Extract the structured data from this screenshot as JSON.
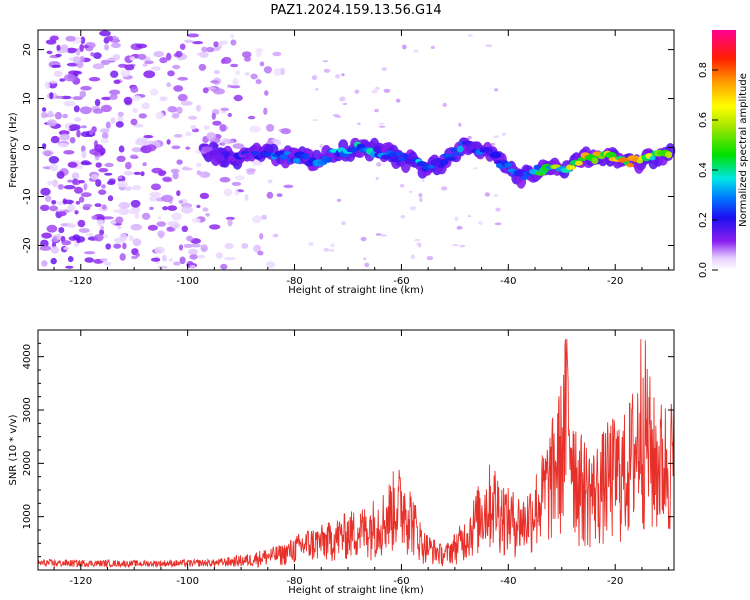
{
  "title": "PAZ1.2024.159.13.56.G14",
  "chart_data": [
    {
      "type": "heatmap",
      "xlabel": "Height of straight line (km)",
      "ylabel": "Frequency (Hz)",
      "xlim": [
        -128,
        -9
      ],
      "ylim": [
        -25,
        24
      ],
      "xticks": [
        -120,
        -100,
        -80,
        -60,
        -40,
        -20
      ],
      "yticks": [
        -20,
        -10,
        0,
        10,
        20
      ],
      "colorbar": {
        "label": "Normalized spectral amplitude",
        "range": [
          0,
          0.96
        ],
        "ticks": [
          0.0,
          0.2,
          0.4,
          0.6,
          0.8
        ],
        "colormap": "rainbow (white-purple-blue-cyan-green-yellow-orange-red-magenta)"
      },
      "ridge": {
        "description_points": [
          {
            "x": -96,
            "y": -1,
            "amp": 0.15
          },
          {
            "x": -90,
            "y": -2,
            "amp": 0.2
          },
          {
            "x": -85,
            "y": -1,
            "amp": 0.28
          },
          {
            "x": -80,
            "y": -2,
            "amp": 0.3
          },
          {
            "x": -76,
            "y": -3,
            "amp": 0.3
          },
          {
            "x": -72,
            "y": -1,
            "amp": 0.34
          },
          {
            "x": -68,
            "y": 0,
            "amp": 0.4
          },
          {
            "x": -64,
            "y": -1,
            "amp": 0.32
          },
          {
            "x": -60,
            "y": -2,
            "amp": 0.3
          },
          {
            "x": -56,
            "y": -4,
            "amp": 0.34
          },
          {
            "x": -52,
            "y": -3,
            "amp": 0.3
          },
          {
            "x": -48,
            "y": 1,
            "amp": 0.3
          },
          {
            "x": -44,
            "y": -1,
            "amp": 0.25
          },
          {
            "x": -40,
            "y": -4,
            "amp": 0.28
          },
          {
            "x": -37,
            "y": -6,
            "amp": 0.25
          },
          {
            "x": -33,
            "y": -4,
            "amp": 0.55
          },
          {
            "x": -29,
            "y": -4,
            "amp": 0.6
          },
          {
            "x": -25,
            "y": -2,
            "amp": 0.75
          },
          {
            "x": -21,
            "y": -2,
            "amp": 0.65
          },
          {
            "x": -17,
            "y": -3,
            "amp": 0.78
          },
          {
            "x": -13,
            "y": -2,
            "amp": 0.6
          },
          {
            "x": -10,
            "y": -1,
            "amp": 0.85
          }
        ]
      }
    },
    {
      "type": "line",
      "xlabel": "Height of straight line (km)",
      "ylabel": "SNR (10 * v/v)",
      "xlim": [
        -128,
        -9
      ],
      "ylim": [
        0,
        4500
      ],
      "xticks": [
        -120,
        -100,
        -80,
        -60,
        -40,
        -20
      ],
      "yticks": [
        1000,
        2000,
        3000,
        4000
      ],
      "series": [
        {
          "color": "#e8302a",
          "envelope": [
            {
              "x": -128,
              "y": 180
            },
            {
              "x": -110,
              "y": 160
            },
            {
              "x": -95,
              "y": 180
            },
            {
              "x": -88,
              "y": 300
            },
            {
              "x": -82,
              "y": 450
            },
            {
              "x": -78,
              "y": 700
            },
            {
              "x": -74,
              "y": 800
            },
            {
              "x": -70,
              "y": 1000
            },
            {
              "x": -67,
              "y": 1100
            },
            {
              "x": -63,
              "y": 1400
            },
            {
              "x": -61,
              "y": 1800
            },
            {
              "x": -59,
              "y": 1700
            },
            {
              "x": -56,
              "y": 700
            },
            {
              "x": -52,
              "y": 400
            },
            {
              "x": -48,
              "y": 900
            },
            {
              "x": -45,
              "y": 1600
            },
            {
              "x": -43,
              "y": 1900
            },
            {
              "x": -40,
              "y": 1400
            },
            {
              "x": -37,
              "y": 1300
            },
            {
              "x": -34,
              "y": 1900
            },
            {
              "x": -32,
              "y": 2500
            },
            {
              "x": -30,
              "y": 3300
            },
            {
              "x": -29,
              "y": 4400
            },
            {
              "x": -27,
              "y": 2400
            },
            {
              "x": -24,
              "y": 2100
            },
            {
              "x": -21,
              "y": 2600
            },
            {
              "x": -18,
              "y": 2700
            },
            {
              "x": -16,
              "y": 3400
            },
            {
              "x": -15,
              "y": 4400
            },
            {
              "x": -13,
              "y": 3000
            },
            {
              "x": -11,
              "y": 2900
            },
            {
              "x": -9,
              "y": 3100
            }
          ]
        }
      ]
    }
  ]
}
